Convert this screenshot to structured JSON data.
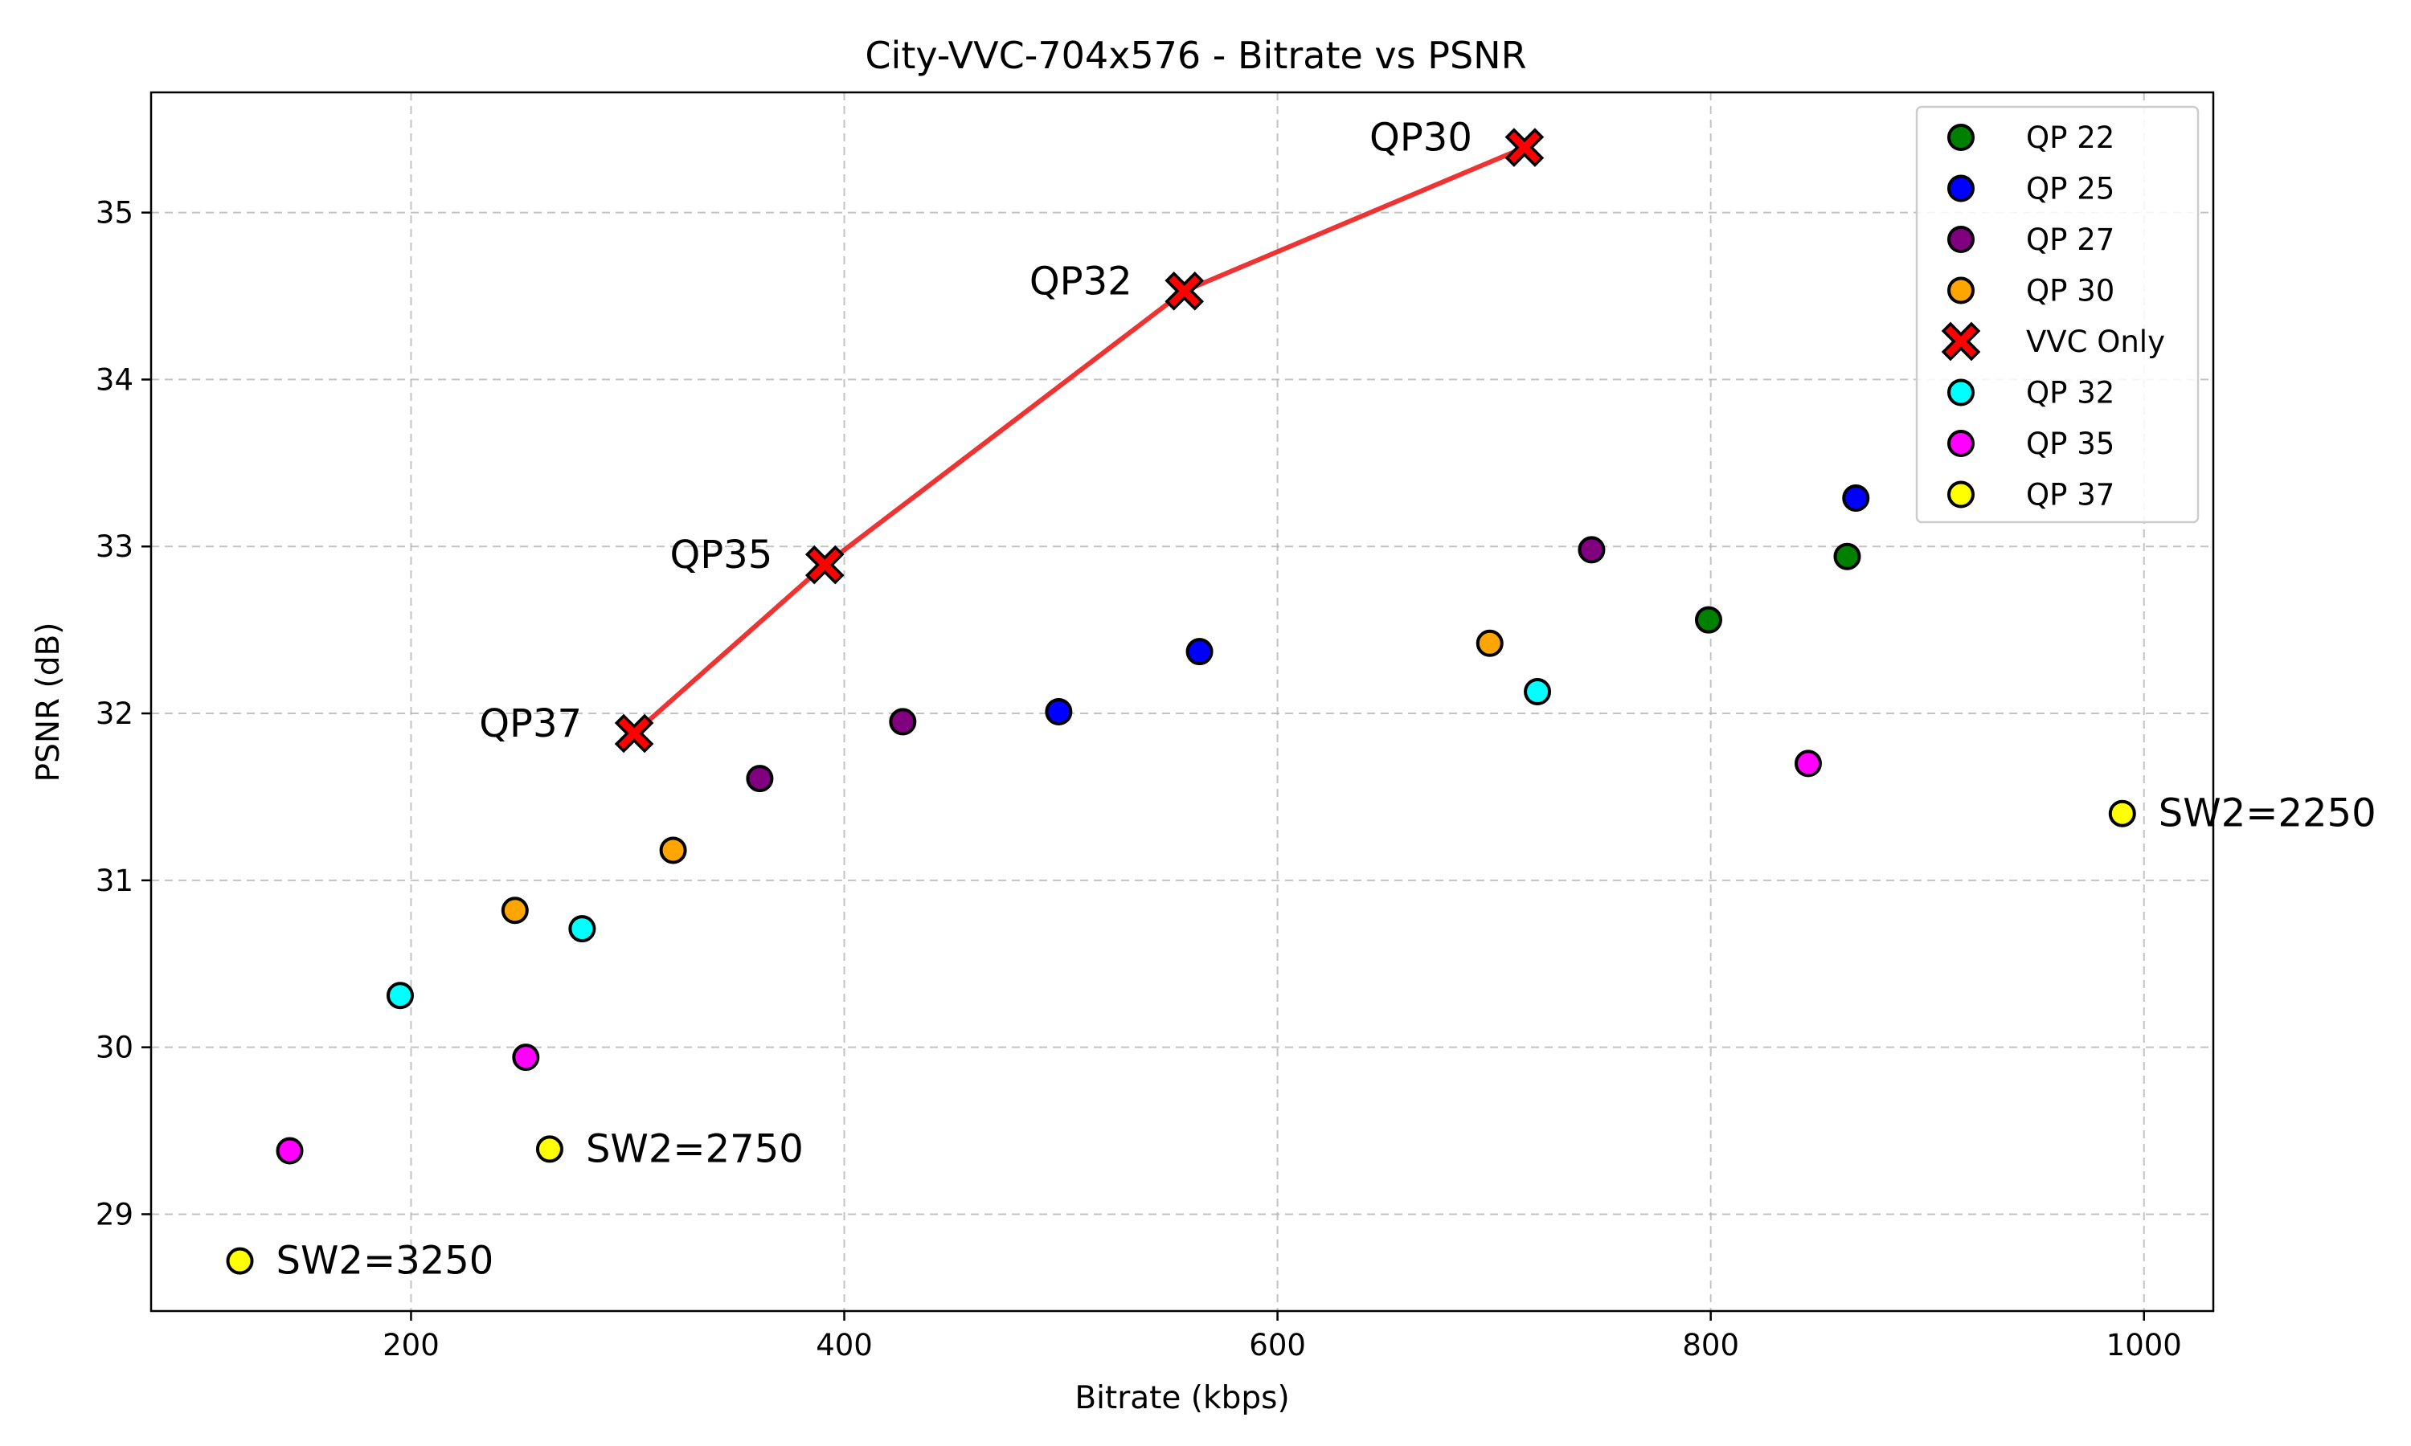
{
  "chart_data": {
    "type": "scatter",
    "title": "City-VVC-704x576 - Bitrate vs PSNR",
    "xlabel": "Bitrate (kbps)",
    "ylabel": "PSNR (dB)",
    "xlim": [
      80,
      1032
    ],
    "ylim": [
      28.42,
      35.72
    ],
    "xticks": [
      200,
      400,
      600,
      800,
      1000
    ],
    "yticks": [
      29,
      30,
      31,
      32,
      33,
      34,
      35
    ],
    "grid": true,
    "legend_position": "top-right",
    "series": [
      {
        "name": "QP 22",
        "marker": "circle",
        "color": "#008000",
        "points": [
          [
            799,
            32.56
          ],
          [
            863,
            32.94
          ]
        ]
      },
      {
        "name": "QP 25",
        "marker": "circle",
        "color": "#0000ff",
        "points": [
          [
            499,
            32.01
          ],
          [
            564,
            32.37
          ],
          [
            867,
            33.29
          ]
        ]
      },
      {
        "name": "QP 27",
        "marker": "circle",
        "color": "#800080",
        "points": [
          [
            361,
            31.61
          ],
          [
            427,
            31.95
          ],
          [
            745,
            32.98
          ]
        ]
      },
      {
        "name": "QP 30",
        "marker": "circle",
        "color": "#ffa500",
        "points": [
          [
            248,
            30.82
          ],
          [
            321,
            31.18
          ],
          [
            698,
            32.42
          ]
        ]
      },
      {
        "name": "VVC Only",
        "marker": "x",
        "color": "#ff0000",
        "line_color": "#ee3333",
        "points": [
          [
            303,
            31.88
          ],
          [
            391,
            32.89
          ],
          [
            557,
            34.53
          ],
          [
            714,
            35.39
          ]
        ]
      },
      {
        "name": "QP 32",
        "marker": "circle",
        "color": "#00ffff",
        "points": [
          [
            195,
            30.31
          ],
          [
            279,
            30.71
          ],
          [
            720,
            32.13
          ]
        ]
      },
      {
        "name": "QP 35",
        "marker": "circle",
        "color": "#ff00ff",
        "points": [
          [
            144,
            29.38
          ],
          [
            253,
            29.94
          ],
          [
            845,
            31.7
          ]
        ]
      },
      {
        "name": "QP 37",
        "marker": "circle",
        "color": "#ffff00",
        "points": [
          [
            121,
            28.72
          ],
          [
            264,
            29.39
          ],
          [
            990,
            31.4
          ]
        ]
      }
    ],
    "annotations": [
      {
        "text": "QP37",
        "x": 303,
        "y": 31.88,
        "side": "left"
      },
      {
        "text": "QP35",
        "x": 391,
        "y": 32.89,
        "side": "left"
      },
      {
        "text": "QP32",
        "x": 557,
        "y": 34.53,
        "side": "left"
      },
      {
        "text": "QP30",
        "x": 714,
        "y": 35.39,
        "side": "left"
      },
      {
        "text": "SW2=3250",
        "x": 121,
        "y": 28.72,
        "side": "right"
      },
      {
        "text": "SW2=2750",
        "x": 264,
        "y": 29.39,
        "side": "right"
      },
      {
        "text": "SW2=2250",
        "x": 990,
        "y": 31.4,
        "side": "right"
      }
    ]
  }
}
